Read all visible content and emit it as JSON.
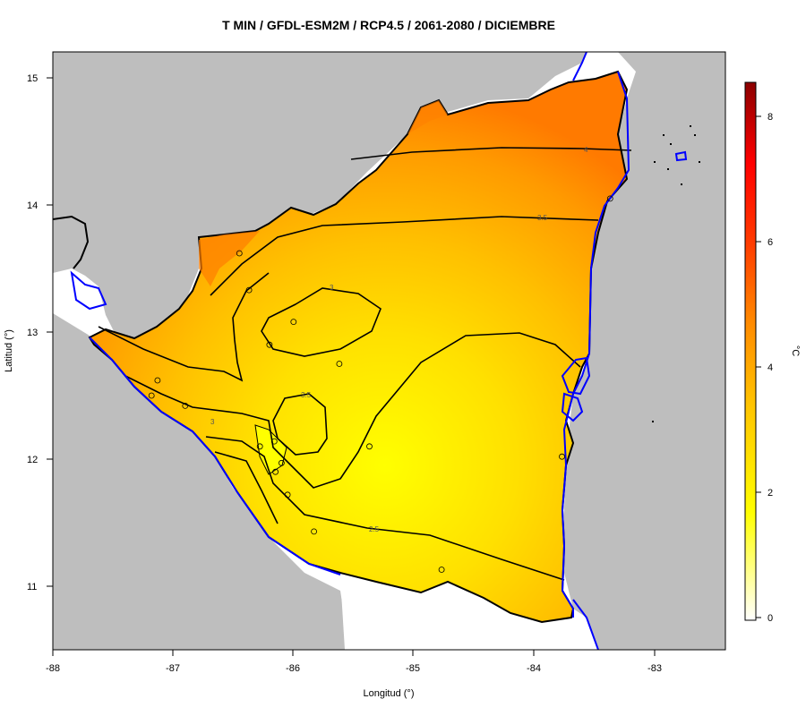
{
  "title": "T MIN / GFDL-ESM2M / RCP4.5 / 2061-2080 / DICIEMBRE",
  "map": {
    "xlabel": "Longitud (°)",
    "ylabel": "Latitud (°)",
    "x_ticks": [
      "-88",
      "-87",
      "-86",
      "-85",
      "-84",
      "-83"
    ],
    "y_ticks": [
      "15",
      "14",
      "13",
      "12",
      "11"
    ],
    "xlim": [
      -88,
      -82.4
    ],
    "ylim": [
      10.5,
      15.2
    ],
    "contour_labels": [
      "4",
      "3.5",
      "3",
      "3.5",
      "3",
      "2.5"
    ],
    "stations": [
      {
        "lon": -86.45,
        "lat": 13.62
      },
      {
        "lon": -86.37,
        "lat": 13.33
      },
      {
        "lon": -86.0,
        "lat": 13.08
      },
      {
        "lon": -86.2,
        "lat": 12.9
      },
      {
        "lon": -85.62,
        "lat": 12.75
      },
      {
        "lon": -87.13,
        "lat": 12.62
      },
      {
        "lon": -87.18,
        "lat": 12.5
      },
      {
        "lon": -86.9,
        "lat": 12.42
      },
      {
        "lon": -86.28,
        "lat": 12.1
      },
      {
        "lon": -86.16,
        "lat": 12.14
      },
      {
        "lon": -86.1,
        "lat": 11.97
      },
      {
        "lon": -86.15,
        "lat": 11.9
      },
      {
        "lon": -86.05,
        "lat": 11.72
      },
      {
        "lon": -85.83,
        "lat": 11.43
      },
      {
        "lon": -85.37,
        "lat": 12.1
      },
      {
        "lon": -84.77,
        "lat": 11.13
      },
      {
        "lon": -83.77,
        "lat": 12.02
      },
      {
        "lon": -83.37,
        "lat": 14.05
      }
    ],
    "colors": {
      "land": "#bebebe",
      "water": "#0000ff",
      "contour": "#000000"
    }
  },
  "colorbar": {
    "label": "°C",
    "ticks": [
      "0",
      "2",
      "4",
      "6",
      "8"
    ],
    "range": [
      -0.2,
      8.6
    ],
    "stops": [
      "#ffffff",
      "#ffff00",
      "#ffc400",
      "#ff8c00",
      "#ff3c00",
      "#ff0000",
      "#8b0000"
    ]
  }
}
